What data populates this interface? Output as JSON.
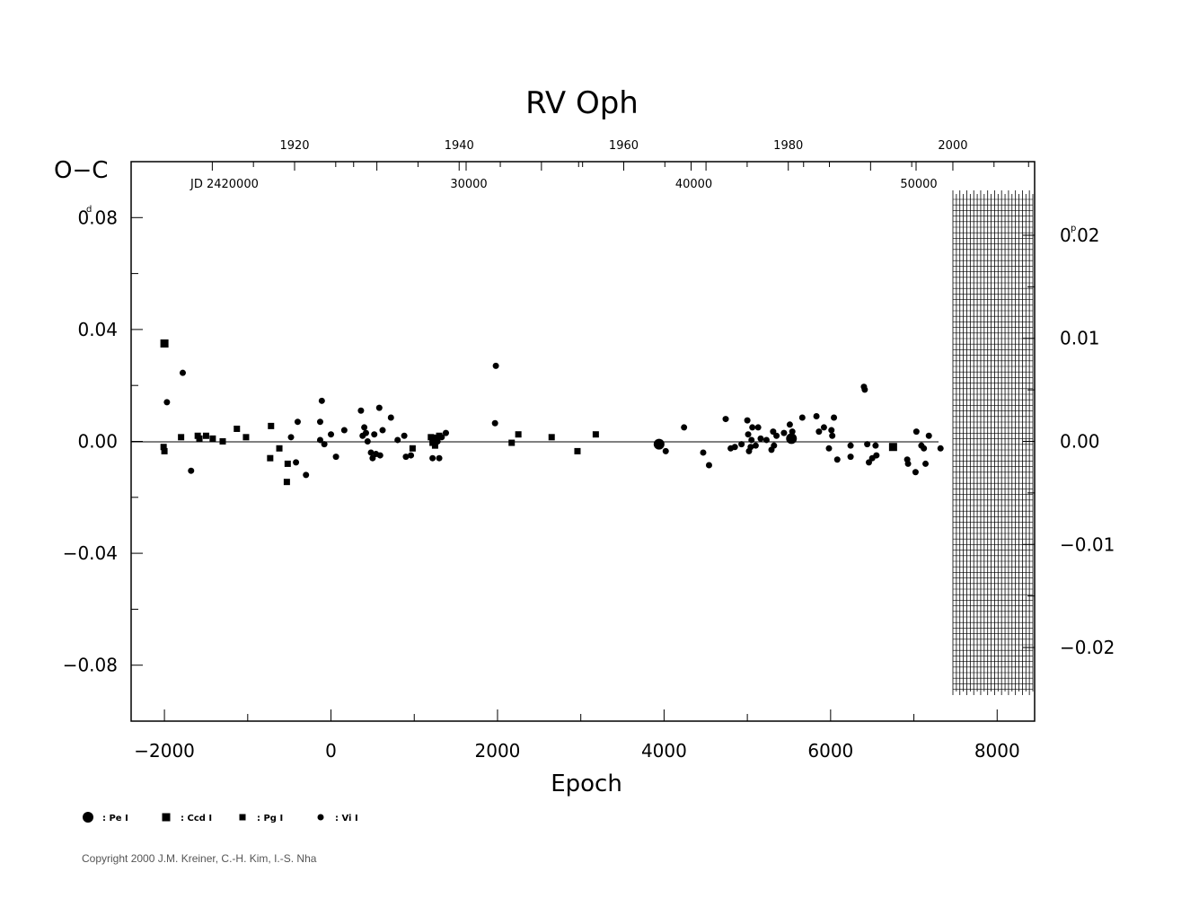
{
  "chart_data": {
    "type": "scatter",
    "title": "RV  Oph",
    "xlabel": "Epoch",
    "ylabel": "O−C",
    "xlim": [
      -2400,
      8450
    ],
    "ylim": [
      -0.1,
      0.1
    ],
    "x_ticks": [
      "−2000",
      "0",
      "2000",
      "4000",
      "6000",
      "8000"
    ],
    "y_ticks_left": [
      "0.08",
      "0.04",
      "0.00",
      "−0.04",
      "−0.08"
    ],
    "y_unit_left": "d",
    "y_ticks_right": [
      "0.02",
      "0.01",
      "0.00",
      "−0.01",
      "−0.02"
    ],
    "y_unit_right": "p",
    "top_year_ticks": [
      "1920",
      "1940",
      "1960",
      "1980",
      "2000"
    ],
    "jd_label": "JD  2420000",
    "jd_ticks": [
      "30000",
      "40000",
      "50000"
    ],
    "legend": [
      {
        "symbol": "large-circle",
        "label": ": Pe  I"
      },
      {
        "symbol": "large-square",
        "label": ": Ccd  I"
      },
      {
        "symbol": "small-square",
        "label": ": Pg  I"
      },
      {
        "symbol": "small-circle",
        "label": ": Vi  I"
      }
    ],
    "series": [
      {
        "name": "Pe I",
        "marker": "large-circle",
        "points": [
          [
            3940,
            -0.001
          ],
          [
            5530,
            0.001
          ]
        ]
      },
      {
        "name": "Ccd I",
        "marker": "large-square",
        "points": [
          [
            -2000,
            0.035
          ],
          [
            6750,
            -0.002
          ],
          [
            1260,
            0.001
          ]
        ]
      },
      {
        "name": "Pg I",
        "marker": "small-square",
        "points": [
          [
            -2010,
            -0.002
          ],
          [
            -2000,
            -0.0035
          ],
          [
            -1800,
            0.0015
          ],
          [
            -1600,
            0.002
          ],
          [
            -1580,
            0.001
          ],
          [
            -1500,
            0.002
          ],
          [
            -1420,
            0.001
          ],
          [
            -1300,
            0.0
          ],
          [
            -1130,
            0.0045
          ],
          [
            -1020,
            0.0015
          ],
          [
            -720,
            0.0055
          ],
          [
            -730,
            -0.006
          ],
          [
            -620,
            -0.0025
          ],
          [
            -520,
            -0.008
          ],
          [
            -530,
            -0.0145
          ],
          [
            980,
            -0.0025
          ],
          [
            1200,
            0.0015
          ],
          [
            1220,
            -0.0005
          ],
          [
            1250,
            -0.0015
          ],
          [
            1300,
            0.002
          ],
          [
            2170,
            -0.0005
          ],
          [
            2250,
            0.0025
          ],
          [
            2650,
            0.0015
          ],
          [
            2960,
            -0.0035
          ],
          [
            3180,
            0.0025
          ]
        ]
      },
      {
        "name": "Vi I",
        "marker": "small-circle",
        "points": [
          [
            -1780,
            0.0245
          ],
          [
            -1970,
            0.014
          ],
          [
            -1680,
            -0.0105
          ],
          [
            -480,
            0.0015
          ],
          [
            -420,
            -0.0075
          ],
          [
            -400,
            0.007
          ],
          [
            -300,
            -0.012
          ],
          [
            -130,
            0.007
          ],
          [
            -130,
            0.0005
          ],
          [
            -110,
            0.0145
          ],
          [
            -80,
            -0.001
          ],
          [
            0,
            0.0025
          ],
          [
            60,
            -0.0055
          ],
          [
            160,
            0.004
          ],
          [
            360,
            0.011
          ],
          [
            380,
            0.002
          ],
          [
            400,
            0.005
          ],
          [
            420,
            0.003
          ],
          [
            440,
            0.0
          ],
          [
            480,
            -0.004
          ],
          [
            500,
            -0.006
          ],
          [
            520,
            0.0025
          ],
          [
            540,
            -0.0045
          ],
          [
            580,
            0.012
          ],
          [
            590,
            -0.005
          ],
          [
            620,
            0.004
          ],
          [
            720,
            0.0085
          ],
          [
            800,
            0.0005
          ],
          [
            880,
            0.002
          ],
          [
            900,
            -0.0055
          ],
          [
            960,
            -0.005
          ],
          [
            1220,
            -0.006
          ],
          [
            1280,
            0.0
          ],
          [
            1300,
            -0.006
          ],
          [
            1330,
            0.0015
          ],
          [
            1380,
            0.003
          ],
          [
            1980,
            0.027
          ],
          [
            1970,
            0.0065
          ],
          [
            4020,
            -0.0035
          ],
          [
            4240,
            0.005
          ],
          [
            4470,
            -0.004
          ],
          [
            4540,
            -0.0085
          ],
          [
            4740,
            0.008
          ],
          [
            4800,
            -0.0025
          ],
          [
            4850,
            -0.002
          ],
          [
            4930,
            -0.001
          ],
          [
            5000,
            0.0075
          ],
          [
            5010,
            0.0025
          ],
          [
            5020,
            -0.0035
          ],
          [
            5040,
            -0.002
          ],
          [
            5050,
            0.0005
          ],
          [
            5060,
            0.005
          ],
          [
            5100,
            -0.0015
          ],
          [
            5130,
            0.005
          ],
          [
            5160,
            0.001
          ],
          [
            5230,
            0.0005
          ],
          [
            5290,
            -0.003
          ],
          [
            5320,
            -0.0015
          ],
          [
            5310,
            0.0035
          ],
          [
            5350,
            0.002
          ],
          [
            5440,
            0.003
          ],
          [
            5510,
            0.006
          ],
          [
            5540,
            0.0035
          ],
          [
            5660,
            0.0085
          ],
          [
            5830,
            0.009
          ],
          [
            5860,
            0.0035
          ],
          [
            5920,
            0.005
          ],
          [
            5980,
            -0.0025
          ],
          [
            6010,
            0.004
          ],
          [
            6020,
            0.002
          ],
          [
            6040,
            0.0085
          ],
          [
            6080,
            -0.0065
          ],
          [
            6240,
            -0.0015
          ],
          [
            6240,
            -0.0055
          ],
          [
            6400,
            0.0195
          ],
          [
            6410,
            0.0185
          ],
          [
            6440,
            -0.001
          ],
          [
            6460,
            -0.0075
          ],
          [
            6500,
            -0.006
          ],
          [
            6540,
            -0.0015
          ],
          [
            6550,
            -0.005
          ],
          [
            6920,
            -0.0065
          ],
          [
            6930,
            -0.008
          ],
          [
            7020,
            -0.011
          ],
          [
            7030,
            0.0035
          ],
          [
            7090,
            -0.0015
          ],
          [
            7120,
            -0.0025
          ],
          [
            7140,
            -0.008
          ],
          [
            7180,
            0.002
          ],
          [
            7320,
            -0.0025
          ]
        ]
      }
    ]
  },
  "copyright": "Copyright 2000 J.M. Kreiner, C.-H. Kim, I.-S. Nha"
}
